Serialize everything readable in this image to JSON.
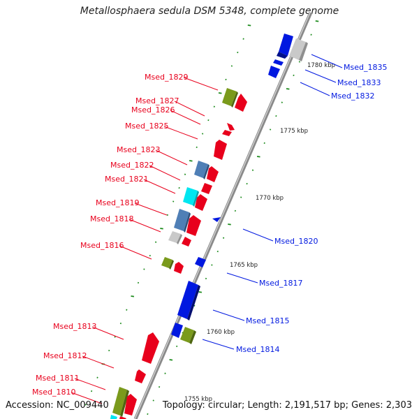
{
  "title": "Metallosphaera sedula DSM 5348, complete genome",
  "accession": "Accession: NC_009440",
  "topology": "Topology: circular; Length: 2,191,517 bp; Genes: 2,303",
  "colors": {
    "forward": "#e8001c",
    "reverse": "#0018e0",
    "olive": "#7a9a1c",
    "steel": "#4f7fb6",
    "cyan": "#00e6f0",
    "grey": "#bdbdbd",
    "ticks": "#1a8a1a"
  },
  "kbp_labels": [
    "1780 kbp",
    "1775 kbp",
    "1770 kbp",
    "1765 kbp",
    "1760 kbp",
    "1755 kbp"
  ],
  "left_labels": [
    "Msed_1829",
    "Msed_1827",
    "Msed_1826",
    "Msed_1825",
    "Msed_1823",
    "Msed_1822",
    "Msed_1821",
    "Msed_1819",
    "Msed_1818",
    "Msed_1816",
    "Msed_1813",
    "Msed_1812",
    "Msed_1811",
    "Msed_1810"
  ],
  "right_labels": [
    "Msed_1835",
    "Msed_1833",
    "Msed_1832",
    "Msed_1820",
    "Msed_1817",
    "Msed_1815",
    "Msed_1814"
  ]
}
